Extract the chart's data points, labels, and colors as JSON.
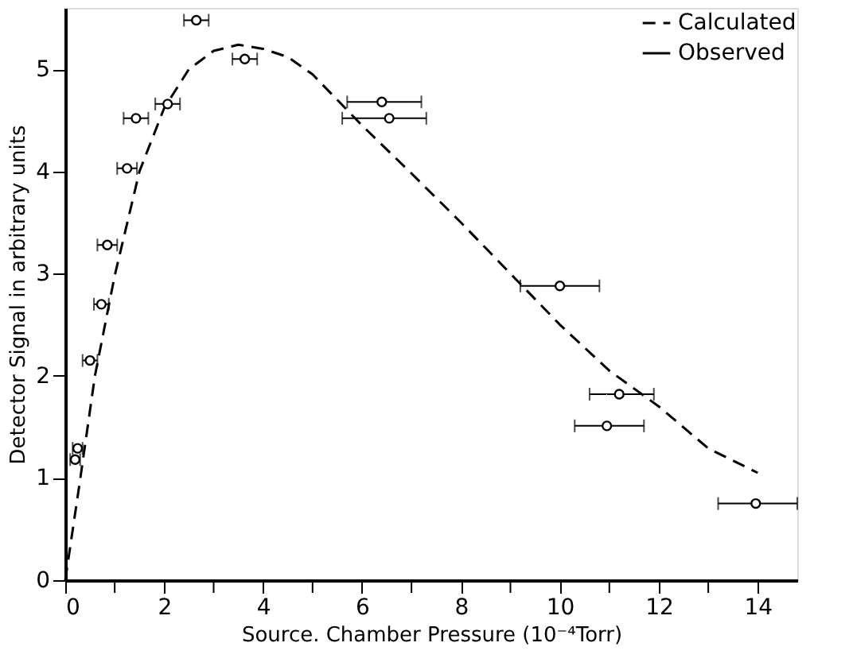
{
  "chart_data": {
    "type": "scatter",
    "xlabel": "Source. Chamber Pressure (10⁻⁴Torr)",
    "ylabel": "Detector Signal in arbitrary units",
    "xlim": [
      0,
      14.8
    ],
    "ylim": [
      0,
      5.6
    ],
    "xticks": [
      0,
      {
        "value": 1,
        "label": null
      },
      2,
      {
        "value": 3,
        "label": null
      },
      4,
      {
        "value": 5,
        "label": null
      },
      6,
      {
        "value": 7,
        "label": null
      },
      8,
      {
        "value": 9,
        "label": null
      },
      10,
      {
        "value": 11,
        "label": null
      },
      12,
      {
        "value": 13,
        "label": null
      },
      14
    ],
    "yticks": [
      0,
      1,
      2,
      3,
      4,
      5
    ],
    "grid": false,
    "legend": "top right",
    "series": [
      {
        "name": "Calculated",
        "type": "line",
        "line_style": "dashed",
        "marker": "none",
        "color": "#000000",
        "x": [
          0,
          0.3,
          0.6,
          1,
          1.5,
          2,
          2.5,
          3,
          3.5,
          4,
          4.5,
          5,
          6,
          7,
          8,
          9,
          10,
          11,
          12,
          13,
          14
        ],
        "values": [
          0,
          0.98,
          2.0,
          2.98,
          4.0,
          4.62,
          5.0,
          5.18,
          5.24,
          5.2,
          5.12,
          4.95,
          4.45,
          3.98,
          3.5,
          3.0,
          2.5,
          2.05,
          1.7,
          1.29,
          1.05
        ]
      },
      {
        "name": "Observed",
        "type": "scatter",
        "marker": "circle",
        "color": "#000000",
        "x": [
          0.2,
          0.25,
          0.5,
          0.73,
          0.85,
          1.25,
          1.43,
          2.07,
          2.65,
          3.63,
          6.4,
          6.55,
          10.0,
          11.2,
          10.95,
          13.96
        ],
        "values": [
          1.18,
          1.29,
          2.15,
          2.7,
          3.28,
          4.03,
          4.52,
          4.66,
          5.48,
          5.1,
          4.68,
          4.52,
          2.88,
          1.82,
          1.51,
          0.75
        ],
        "xerrors": [
          0.1,
          0.1,
          0.15,
          0.15,
          0.2,
          0.2,
          0.25,
          0.25,
          0.25,
          0.25,
          [
            5.7,
            7.2
          ],
          [
            5.6,
            7.3
          ],
          [
            9.2,
            10.8
          ],
          [
            10.6,
            11.9
          ],
          [
            10.3,
            11.7
          ],
          [
            13.2,
            14.8
          ]
        ]
      }
    ]
  }
}
